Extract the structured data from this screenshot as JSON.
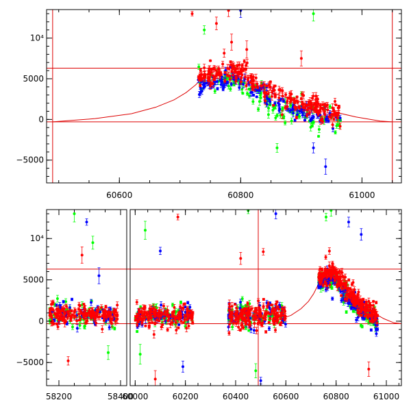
{
  "figure": {
    "description": "Two-panel light curve: top panel zoomed on the outburst, bottom panel full baseline with broken x-axis",
    "series_colors": {
      "green": "#00ff00",
      "blue": "#0000ff",
      "red": "#ff0000",
      "model": "#dd0000"
    }
  },
  "chart_data": [
    {
      "type": "scatter",
      "name": "top-panel",
      "xlim": [
        60480,
        61065
      ],
      "ylim": [
        -7800,
        13500
      ],
      "xticks": [
        60600,
        60800,
        61000
      ],
      "xtick_labels": [
        "60600",
        "60800",
        "61000"
      ],
      "yticks": [
        -5000,
        0,
        5000,
        10000
      ],
      "ytick_labels": [
        "−5000",
        "0",
        "5000",
        "10⁴"
      ],
      "hlines": [
        6300,
        -300
      ],
      "vlines": [
        60490,
        61050
      ],
      "model_curve": {
        "x": [
          60490,
          60560,
          60620,
          60660,
          60690,
          60710,
          60725,
          60735,
          60760,
          60790,
          60830,
          60870,
          60910,
          60950,
          60990,
          61030,
          61050
        ],
        "y": [
          -300,
          100,
          700,
          1500,
          2400,
          3300,
          4200,
          4900,
          5400,
          4900,
          3800,
          2800,
          1900,
          1000,
          300,
          -200,
          -300
        ]
      },
      "series": [
        {
          "name": "red",
          "color": "#ff0000",
          "x_range": [
            60730,
            60965
          ],
          "trend": [
            [
              60730,
              5200
            ],
            [
              60790,
              6000
            ],
            [
              60850,
              3500
            ],
            [
              60900,
              2000
            ],
            [
              60965,
              600
            ]
          ],
          "scatter": 900,
          "n": 260,
          "outliers": [
            [
              60780,
              13400
            ],
            [
              60785,
              9500
            ],
            [
              60720,
              13000
            ],
            [
              60760,
              11800
            ],
            [
              60810,
              8600
            ],
            [
              60900,
              7500
            ]
          ]
        },
        {
          "name": "blue",
          "color": "#0000ff",
          "x_range": [
            60730,
            60965
          ],
          "trend": [
            [
              60730,
              4000
            ],
            [
              60790,
              5200
            ],
            [
              60850,
              2500
            ],
            [
              60900,
              800
            ],
            [
              60965,
              -300
            ]
          ],
          "scatter": 700,
          "n": 150,
          "outliers": [
            [
              60800,
              13400
            ],
            [
              60940,
              -5800
            ],
            [
              60920,
              -3500
            ]
          ]
        },
        {
          "name": "green",
          "color": "#00ff00",
          "x_range": [
            60730,
            60965
          ],
          "trend": [
            [
              60730,
              4200
            ],
            [
              60790,
              4800
            ],
            [
              60850,
              2000
            ],
            [
              60900,
              600
            ],
            [
              60965,
              0
            ]
          ],
          "scatter": 1200,
          "n": 130,
          "outliers": [
            [
              60920,
              13000
            ],
            [
              60740,
              11000
            ],
            [
              60860,
              -3500
            ]
          ]
        }
      ]
    },
    {
      "type": "scatter",
      "name": "bottom-panel",
      "ylim": [
        -7800,
        13500
      ],
      "segments": [
        {
          "xlim": [
            58160,
            58420
          ],
          "xticks": [
            58200,
            58400
          ],
          "xtick_labels": [
            "58200",
            "58400"
          ]
        },
        {
          "xlim": [
            59980,
            61060
          ],
          "xticks": [
            60000,
            60200,
            60400,
            60600,
            60800,
            61000
          ],
          "xtick_labels": [
            "60000",
            "60200",
            "60400",
            "60600",
            "60800",
            "61000"
          ]
        }
      ],
      "yticks": [
        -5000,
        0,
        5000,
        10000
      ],
      "ytick_labels": [
        "−5000",
        "0",
        "5000",
        "10⁴"
      ],
      "hlines": [
        6300,
        -300
      ],
      "vlines": [
        60490
      ],
      "model_curve": {
        "x": [
          60560,
          60620,
          60660,
          60690,
          60710,
          60725,
          60735,
          60760,
          60790,
          60830,
          60870,
          60910,
          60950,
          60990,
          61030,
          61060
        ],
        "y": [
          100,
          700,
          1500,
          2400,
          3300,
          4200,
          4900,
          5400,
          4900,
          3800,
          2800,
          1900,
          1000,
          300,
          -200,
          -300
        ]
      },
      "groups": [
        {
          "x_range": [
            58170,
            58390
          ],
          "level": 800,
          "scatter": 900,
          "n": [
            160,
            70,
            60
          ],
          "outliers": [
            [
              58250,
              13000
            ],
            [
              58290,
              12000
            ],
            [
              58275,
              8000
            ],
            [
              58310,
              9500
            ],
            [
              58330,
              5500
            ],
            [
              58230,
              -4800
            ],
            [
              58360,
              -3800
            ]
          ]
        },
        {
          "x_range": [
            60000,
            60230
          ],
          "level": 700,
          "scatter": 900,
          "n": [
            150,
            70,
            60
          ],
          "outliers": [
            [
              60040,
              11000
            ],
            [
              60100,
              8500
            ],
            [
              60170,
              12600
            ],
            [
              60020,
              -4000
            ],
            [
              60190,
              -5500
            ],
            [
              60080,
              -7000
            ]
          ]
        },
        {
          "x_range": [
            60370,
            60600
          ],
          "level": 700,
          "scatter": 1000,
          "n": [
            170,
            80,
            70
          ],
          "outliers": [
            [
              60450,
              13400
            ],
            [
              60560,
              13000
            ],
            [
              60420,
              7600
            ],
            [
              60480,
              -6000
            ],
            [
              60500,
              -7200
            ],
            [
              60510,
              8400
            ]
          ]
        },
        {
          "x_range": [
            60730,
            60965
          ],
          "trend": [
            [
              60730,
              5200
            ],
            [
              60790,
              6000
            ],
            [
              60850,
              3500
            ],
            [
              60900,
              2000
            ],
            [
              60965,
              600
            ]
          ],
          "scatter": 900,
          "n": [
            240,
            140,
            120
          ],
          "outliers": [
            [
              60780,
              13400
            ],
            [
              60850,
              12000
            ],
            [
              60930,
              -5800
            ],
            [
              60760,
              12600
            ],
            [
              60900,
              10500
            ]
          ]
        }
      ]
    }
  ]
}
